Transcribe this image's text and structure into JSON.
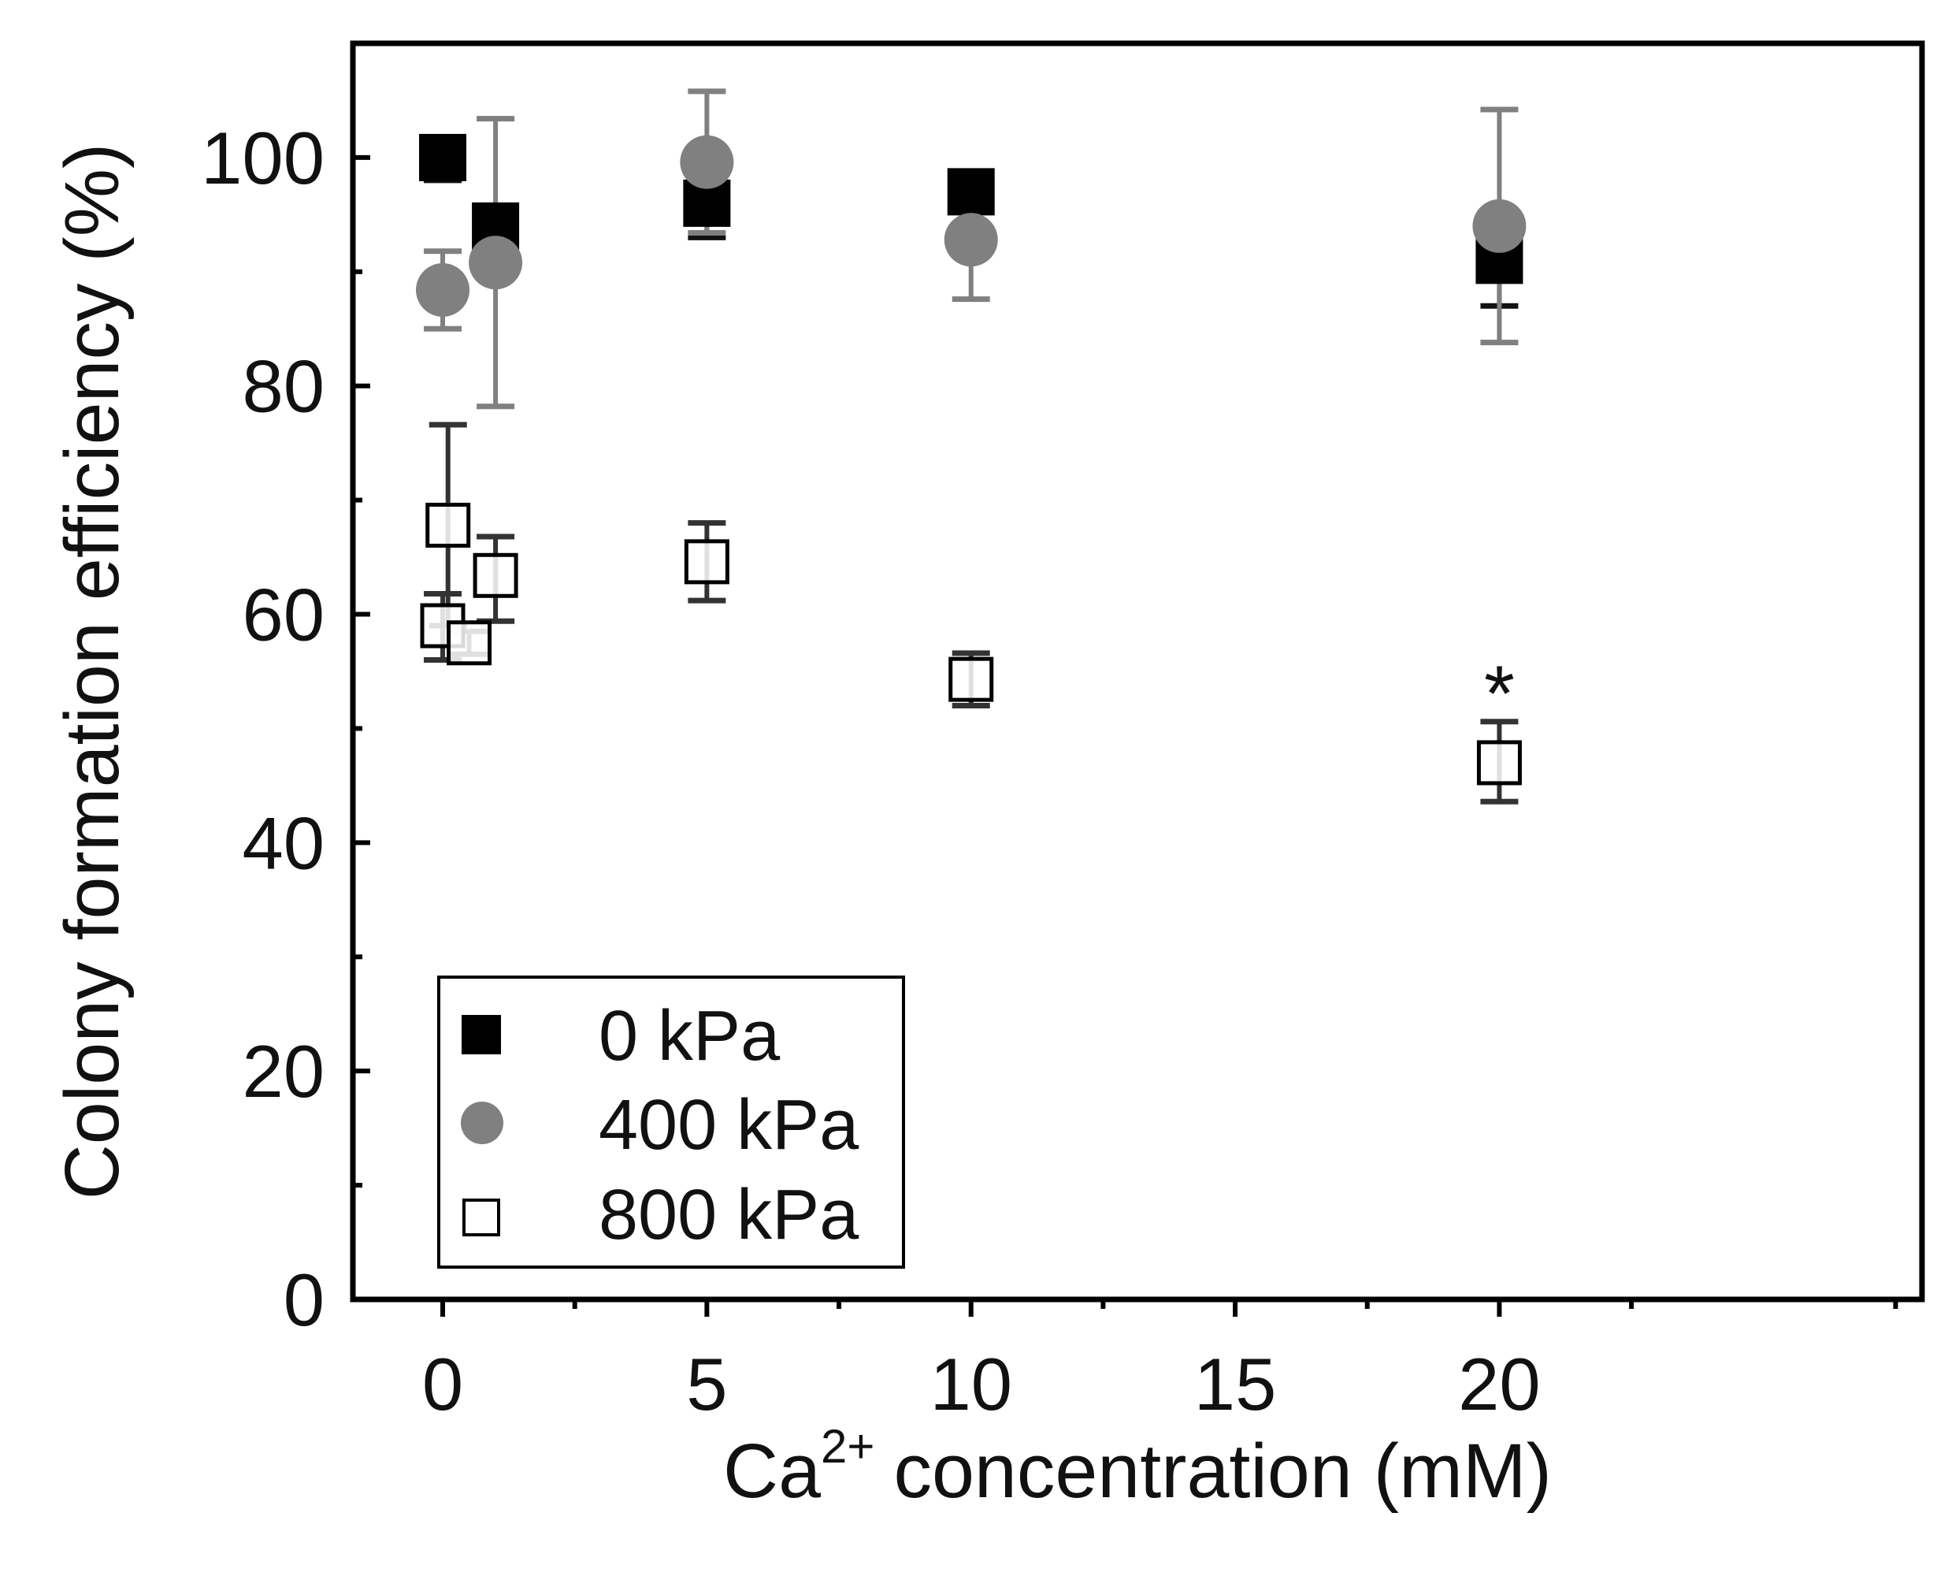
{
  "chart_data": {
    "type": "scatter",
    "title": "",
    "xlabel": "Ca",
    "xlabel_sup": "2+",
    "xlabel_rest": "concentration (mM)",
    "ylabel": "Colony formation efficiency (%)",
    "xlim": [
      -1.7,
      28
    ],
    "ylim": [
      0,
      110
    ],
    "xticks": [
      0,
      5,
      10,
      15,
      20
    ],
    "xtick_labels": [
      "0",
      "5",
      "10",
      "15",
      "20"
    ],
    "yticks": [
      0,
      20,
      40,
      60,
      80,
      100
    ],
    "ytick_labels": [
      "0",
      "20",
      "40",
      "60",
      "80",
      "100"
    ],
    "legend_position": "bottom-left",
    "series": [
      {
        "name": "0 kPa",
        "marker": "filled-square",
        "color": "#000000",
        "points": [
          {
            "x": 0,
            "y": 100,
            "err_low": 98,
            "err_high": 101
          },
          {
            "x": 1,
            "y": 94,
            "err_low": 93,
            "err_high": 95
          },
          {
            "x": 5,
            "y": 96,
            "err_low": 93,
            "err_high": 99
          },
          {
            "x": 10,
            "y": 97,
            "err_low": 96,
            "err_high": 98
          },
          {
            "x": 20,
            "y": 91,
            "err_low": 87,
            "err_high": 95
          }
        ]
      },
      {
        "name": "400 kPa",
        "marker": "filled-circle",
        "color": "#808080",
        "points": [
          {
            "x": 0,
            "y": 88.4,
            "err_low": 85,
            "err_high": 91.8
          },
          {
            "x": 1,
            "y": 90.8,
            "err_low": 78.2,
            "err_high": 103.4
          },
          {
            "x": 5,
            "y": 99.6,
            "err_low": 93.4,
            "err_high": 105.8
          },
          {
            "x": 10,
            "y": 92.8,
            "err_low": 87.6,
            "err_high": 98
          },
          {
            "x": 20,
            "y": 94,
            "err_low": 83.8,
            "err_high": 104.2
          }
        ]
      },
      {
        "name": "800 kPa",
        "marker": "open-square",
        "color": "#000000",
        "points": [
          {
            "x": 0,
            "y": 59,
            "err_low": 56,
            "err_high": 61.8
          },
          {
            "x": 0.1,
            "y": 67.8,
            "err_low": 59,
            "err_high": 76.6
          },
          {
            "x": 0.5,
            "y": 57.5,
            "err_low": 56.5,
            "err_high": 58.5
          },
          {
            "x": 1,
            "y": 63.4,
            "err_low": 59.4,
            "err_high": 66.8
          },
          {
            "x": 5,
            "y": 64.6,
            "err_low": 61.2,
            "err_high": 68
          },
          {
            "x": 10,
            "y": 54.3,
            "err_low": 52,
            "err_high": 56.6
          },
          {
            "x": 20,
            "y": 47,
            "err_low": 43.6,
            "err_high": 50.6
          }
        ]
      }
    ],
    "annotations": [
      {
        "text": "*",
        "x": 20,
        "y": 54
      }
    ]
  }
}
